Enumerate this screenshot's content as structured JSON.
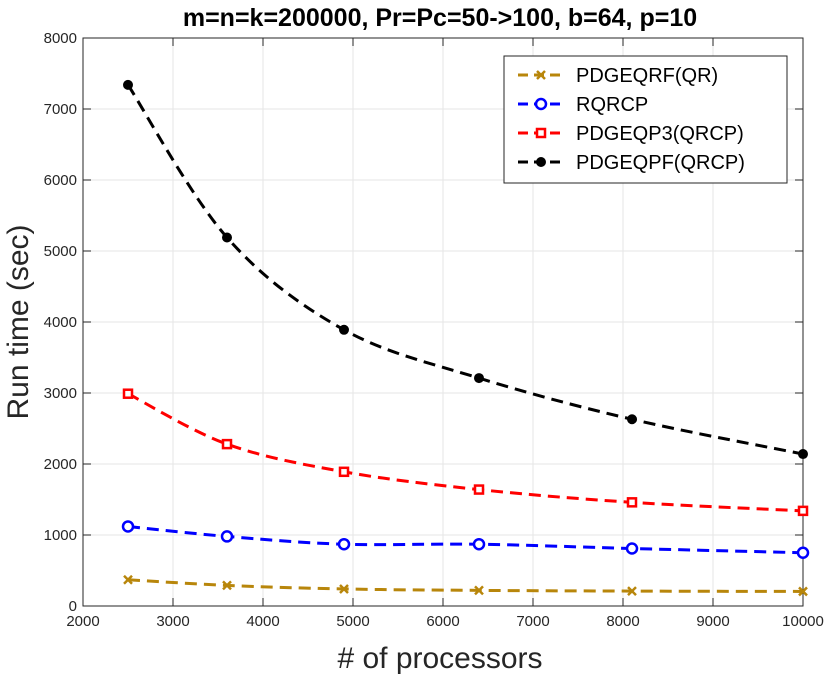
{
  "chart_data": {
    "type": "line",
    "title": "m=n=k=200000, Pr=Pc=50->100, b=64, p=10",
    "xlabel": "# of processors",
    "ylabel": "Run time (sec)",
    "xlim": [
      2000,
      10000
    ],
    "ylim": [
      0,
      8000
    ],
    "xticks": [
      2000,
      3000,
      4000,
      5000,
      6000,
      7000,
      8000,
      9000,
      10000
    ],
    "yticks": [
      0,
      1000,
      2000,
      3000,
      4000,
      5000,
      6000,
      7000,
      8000
    ],
    "grid": true,
    "legend_position": "top-right",
    "x": [
      2500,
      3600,
      4900,
      6400,
      8100,
      10000
    ],
    "series": [
      {
        "name": "PDGEQRF(QR)",
        "color": "#b8860b",
        "marker": "x",
        "values": [
          370,
          290,
          240,
          220,
          210,
          205
        ]
      },
      {
        "name": "RQRCP",
        "color": "#0000ff",
        "marker": "circle",
        "values": [
          1120,
          980,
          870,
          870,
          810,
          750
        ]
      },
      {
        "name": "PDGEQP3(QRCP)",
        "color": "#ff0000",
        "marker": "square",
        "values": [
          2990,
          2280,
          1890,
          1640,
          1460,
          1340
        ]
      },
      {
        "name": "PDGEQPF(QRCP)",
        "color": "#000000",
        "marker": "dot",
        "values": [
          7340,
          5190,
          3890,
          3210,
          2630,
          2140
        ]
      }
    ]
  }
}
